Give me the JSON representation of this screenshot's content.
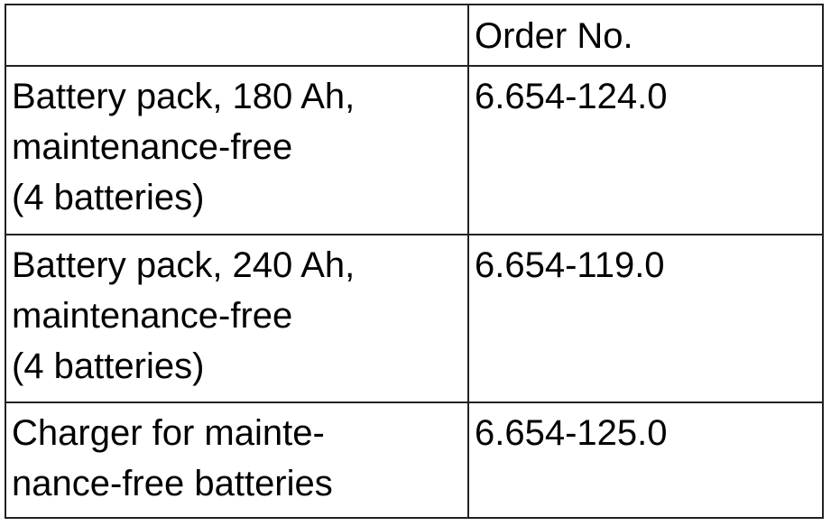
{
  "table": {
    "header": [
      "",
      "Order No."
    ],
    "rows": [
      {
        "item": "Battery pack, 180 Ah,\nmaintenance-free\n(4 batteries)",
        "order_no": "6.654-124.0"
      },
      {
        "item": "Battery pack, 240 Ah,\nmaintenance-free\n(4 batteries)",
        "order_no": "6.654-119.0"
      },
      {
        "item": "Charger for mainte-\nnance-free batteries",
        "order_no": "6.654-125.0"
      }
    ]
  }
}
